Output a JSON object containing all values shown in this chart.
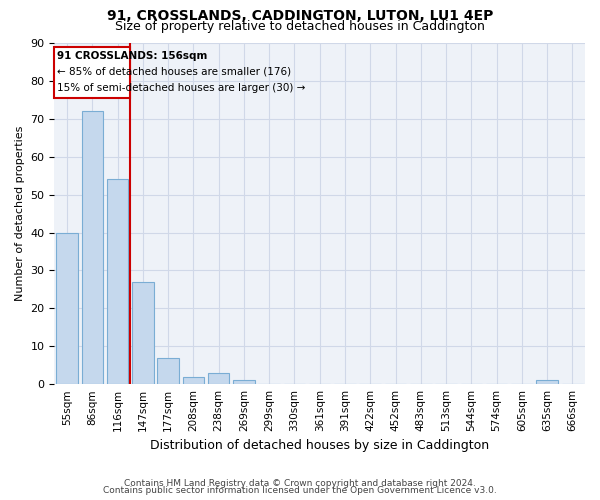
{
  "title1": "91, CROSSLANDS, CADDINGTON, LUTON, LU1 4EP",
  "title2": "Size of property relative to detached houses in Caddington",
  "xlabel": "Distribution of detached houses by size in Caddington",
  "ylabel": "Number of detached properties",
  "categories": [
    "55sqm",
    "86sqm",
    "116sqm",
    "147sqm",
    "177sqm",
    "208sqm",
    "238sqm",
    "269sqm",
    "299sqm",
    "330sqm",
    "361sqm",
    "391sqm",
    "422sqm",
    "452sqm",
    "483sqm",
    "513sqm",
    "544sqm",
    "574sqm",
    "605sqm",
    "635sqm",
    "666sqm"
  ],
  "values": [
    40,
    72,
    54,
    27,
    7,
    2,
    3,
    1,
    0,
    0,
    0,
    0,
    0,
    0,
    0,
    0,
    0,
    0,
    0,
    1,
    0
  ],
  "bar_color": "#c5d8ed",
  "bar_edge_color": "#7aadd4",
  "grid_color": "#d0d8e8",
  "background_color": "#eef2f8",
  "vline_x_index": 2.5,
  "vline_color": "#cc0000",
  "annotation_line1": "91 CROSSLANDS: 156sqm",
  "annotation_line2": "← 85% of detached houses are smaller (176)",
  "annotation_line3": "15% of semi-detached houses are larger (30) →",
  "annotation_box_color": "#cc0000",
  "ylim": [
    0,
    90
  ],
  "footnote1": "Contains HM Land Registry data © Crown copyright and database right 2024.",
  "footnote2": "Contains public sector information licensed under the Open Government Licence v3.0."
}
